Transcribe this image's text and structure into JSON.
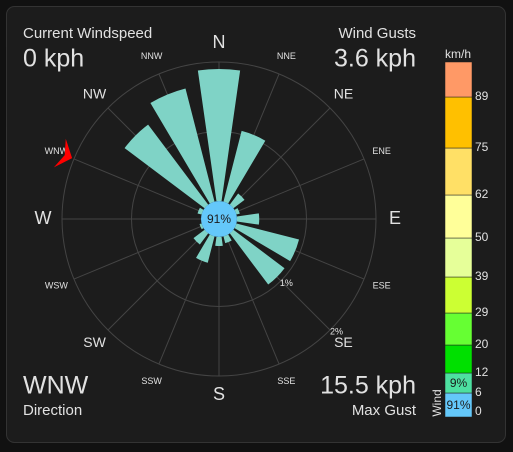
{
  "current_windspeed": {
    "label": "Current Windspeed",
    "value": "0 kph"
  },
  "wind_gusts": {
    "label": "Wind Gusts",
    "value": "3.6 kph"
  },
  "direction": {
    "label": "Direction",
    "value": "WNW"
  },
  "max_gust": {
    "label": "Max Gust",
    "value": "15.5 kph"
  },
  "chart_data": {
    "type": "polar-bar",
    "categories": [
      "N",
      "NNE",
      "NE",
      "ENE",
      "E",
      "ESE",
      "SE",
      "SSE",
      "S",
      "SSW",
      "SW",
      "WSW",
      "W",
      "WNW",
      "NW",
      "NNW"
    ],
    "values": [
      1.9,
      1.05,
      0.2,
      0.05,
      0.32,
      0.93,
      0.92,
      0.1,
      0.13,
      0.39,
      0.2,
      0.03,
      0,
      0.06,
      1.44,
      1.68
    ],
    "color": "#7fd3c6",
    "rlim": [
      0,
      2
    ],
    "rticks": [
      {
        "value": 1,
        "label": "1%"
      },
      {
        "value": 2,
        "label": "2%"
      }
    ],
    "calm": {
      "value": 91,
      "label": "91%"
    },
    "calm_color": "#64c8fa",
    "pointer_color": "#ff0000"
  },
  "speed_scale": {
    "unit": "km/h",
    "label": "Wind",
    "ticks": [
      0,
      6,
      12,
      20,
      29,
      39,
      50,
      62,
      75,
      89
    ],
    "colors": [
      "#64c8fa",
      "#4de0a0",
      "#00e000",
      "#66ff33",
      "#ccff33",
      "#e6ff99",
      "#ffff99",
      "#ffe066",
      "#ffc000",
      "#ff9966"
    ],
    "percentages": [
      {
        "value": 91,
        "label": "91%"
      },
      {
        "value": 9,
        "label": "9%"
      }
    ]
  }
}
